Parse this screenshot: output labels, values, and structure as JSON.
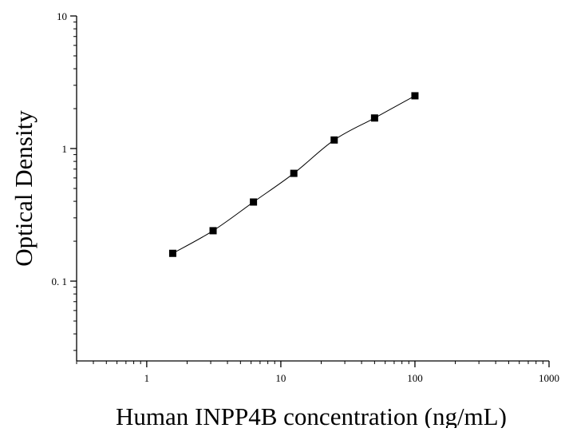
{
  "chart_data": {
    "type": "scatter",
    "title": "",
    "xlabel": "Human INPP4B concentration (ng/mL)",
    "ylabel": "Optical Density",
    "x_scale": "log",
    "y_scale": "log",
    "xlim": [
      0.3,
      1000
    ],
    "ylim": [
      0.025,
      10
    ],
    "x_ticks": [
      {
        "value": 1,
        "label": "1"
      },
      {
        "value": 10,
        "label": "10"
      },
      {
        "value": 100,
        "label": "100"
      },
      {
        "value": 1000,
        "label": "1000"
      }
    ],
    "y_ticks": [
      {
        "value": 0.1,
        "label": "0. 1"
      },
      {
        "value": 1,
        "label": "1"
      },
      {
        "value": 10,
        "label": "10"
      }
    ],
    "grid": false,
    "legend": "none",
    "marker": "square",
    "fit_line": true,
    "colors": {
      "marker": "#000000",
      "line": "#000000",
      "axis": "#000000"
    },
    "series": [
      {
        "x": [
          1.5625,
          3.125,
          6.25,
          12.5,
          25,
          50,
          100
        ],
        "y": [
          0.162,
          0.24,
          0.395,
          0.65,
          1.16,
          1.7,
          2.5
        ]
      }
    ]
  }
}
